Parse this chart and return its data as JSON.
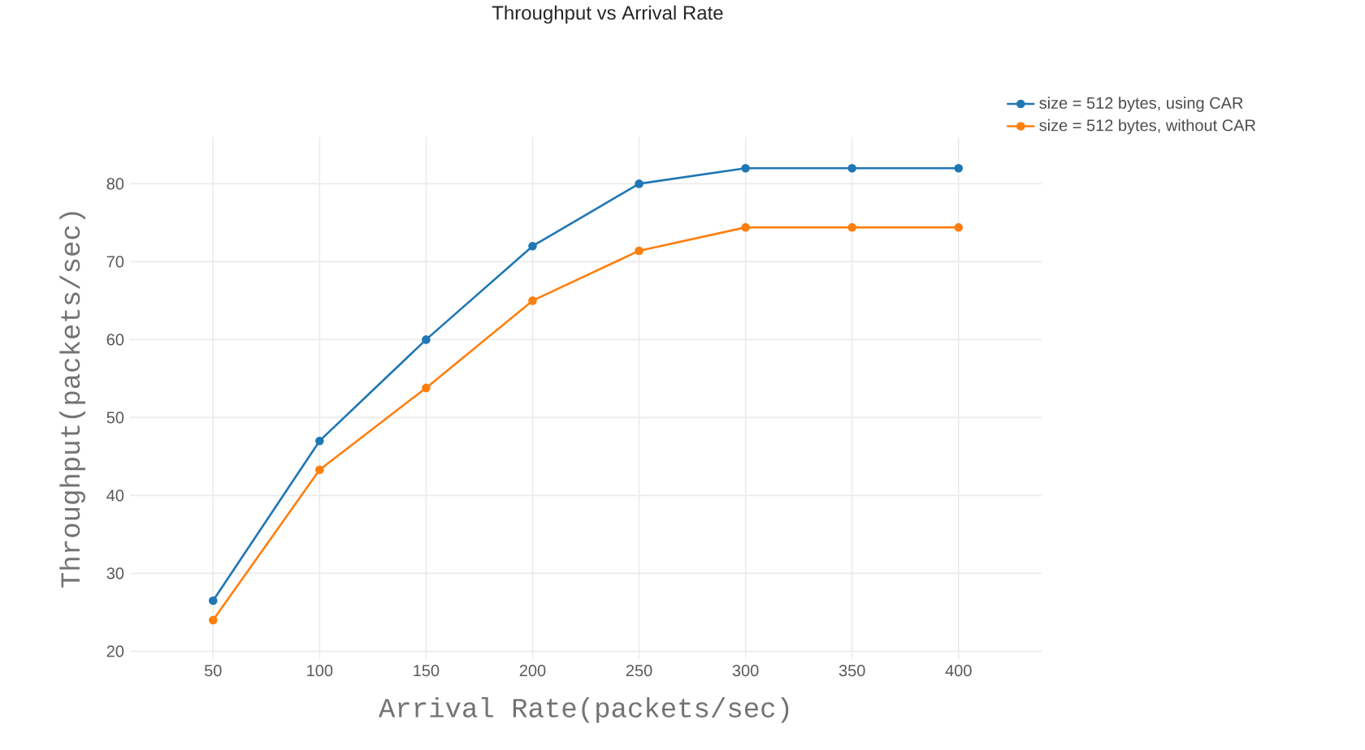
{
  "chart_data": {
    "type": "line",
    "title": "Throughput vs Arrival Rate",
    "xlabel": "Arrival Rate(packets/sec)",
    "ylabel": "Throughput(packets/sec)",
    "x": [
      50,
      100,
      150,
      200,
      250,
      300,
      350,
      400
    ],
    "series": [
      {
        "name": "size = 512 bytes, using CAR",
        "color": "#1f77b4",
        "values": [
          26.5,
          47,
          60,
          72,
          80,
          82,
          82,
          82
        ]
      },
      {
        "name": "size = 512 bytes, without CAR",
        "color": "#ff7f0e",
        "values": [
          24,
          43.3,
          53.8,
          65,
          71.4,
          74.4,
          74.4,
          74.4
        ]
      }
    ],
    "xlim": [
      11,
      439
    ],
    "ylim": [
      19,
      86
    ],
    "xticks": [
      50,
      100,
      150,
      200,
      250,
      300,
      350,
      400
    ],
    "yticks": [
      20,
      30,
      40,
      50,
      60,
      70,
      80
    ],
    "grid": true,
    "legend": "top right",
    "marker": "circle",
    "line_style": "solid"
  }
}
